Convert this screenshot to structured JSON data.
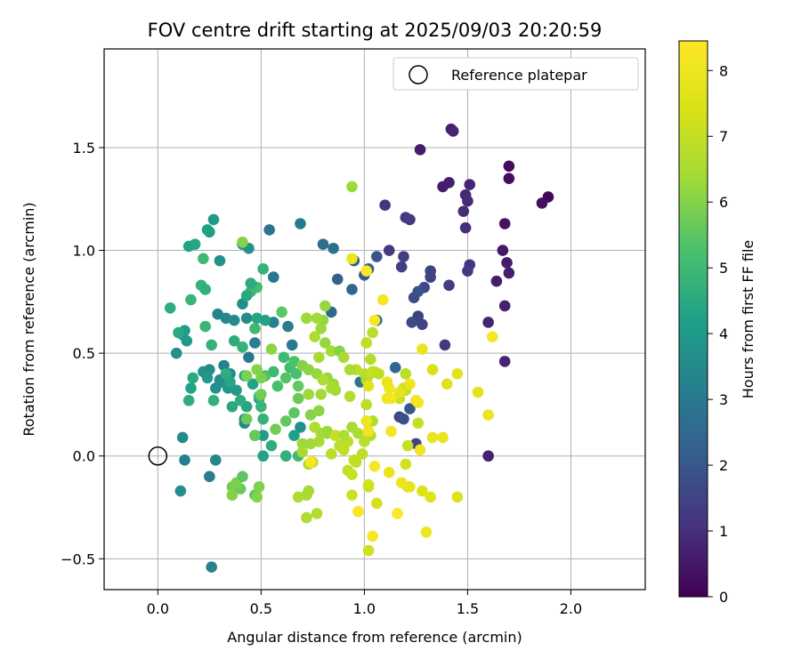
{
  "chart_data": {
    "type": "scatter",
    "title": "FOV centre drift starting at 2025/09/03 20:20:59",
    "xlabel": "Angular distance from reference (arcmin)",
    "ylabel": "Rotation from reference (arcmin)",
    "xlim": [
      -0.26,
      2.36
    ],
    "ylim": [
      -0.65,
      1.98
    ],
    "xticks": [
      0.0,
      0.5,
      1.0,
      1.5,
      2.0
    ],
    "xtick_labels": [
      "0.0",
      "0.5",
      "1.0",
      "1.5",
      "2.0"
    ],
    "yticks": [
      -0.5,
      0.0,
      0.5,
      1.0,
      1.5
    ],
    "ytick_labels": [
      "−0.5",
      "0.0",
      "0.5",
      "1.0",
      "1.5"
    ],
    "grid": true,
    "legend": {
      "label": "Reference platepar",
      "placement": "top-right"
    },
    "reference_point": {
      "x": 0.0,
      "y": 0.0
    },
    "colorbar": {
      "label": "Hours from first FF file",
      "range": [
        0,
        8.45
      ],
      "ticks": [
        0,
        1,
        2,
        3,
        4,
        5,
        6,
        7,
        8
      ],
      "tick_labels": [
        "0",
        "1",
        "2",
        "3",
        "4",
        "5",
        "6",
        "7",
        "8"
      ],
      "colormap": "viridis"
    },
    "points": [
      [
        1.27,
        1.49,
        0.55
      ],
      [
        1.42,
        1.59,
        0.65
      ],
      [
        1.43,
        1.58,
        0.75
      ],
      [
        1.41,
        1.33,
        0.7
      ],
      [
        1.38,
        1.31,
        0.6
      ],
      [
        1.51,
        1.32,
        0.8
      ],
      [
        1.49,
        1.27,
        0.85
      ],
      [
        1.5,
        1.24,
        0.9
      ],
      [
        1.48,
        1.19,
        0.95
      ],
      [
        1.49,
        1.11,
        1.0
      ],
      [
        1.7,
        1.41,
        0.2
      ],
      [
        1.7,
        1.35,
        0.25
      ],
      [
        1.89,
        1.26,
        0.15
      ],
      [
        1.86,
        1.23,
        0.3
      ],
      [
        1.68,
        1.13,
        0.35
      ],
      [
        1.1,
        1.22,
        1.1
      ],
      [
        1.2,
        1.16,
        1.2
      ],
      [
        1.22,
        1.15,
        1.3
      ],
      [
        1.12,
        1.0,
        1.25
      ],
      [
        1.19,
        0.97,
        1.35
      ],
      [
        1.18,
        0.92,
        1.4
      ],
      [
        1.32,
        0.9,
        1.5
      ],
      [
        1.32,
        0.87,
        1.45
      ],
      [
        1.29,
        0.82,
        1.6
      ],
      [
        1.24,
        0.77,
        1.7
      ],
      [
        1.26,
        0.8,
        1.8
      ],
      [
        1.51,
        0.93,
        1.1
      ],
      [
        1.5,
        0.9,
        1.2
      ],
      [
        1.41,
        0.83,
        1.3
      ],
      [
        1.67,
        1.0,
        0.5
      ],
      [
        1.69,
        0.94,
        0.55
      ],
      [
        1.7,
        0.89,
        0.6
      ],
      [
        1.64,
        0.85,
        0.65
      ],
      [
        1.68,
        0.73,
        0.7
      ],
      [
        1.6,
        0.65,
        0.75
      ],
      [
        1.68,
        0.46,
        0.8
      ],
      [
        1.6,
        0.0,
        0.7
      ],
      [
        1.26,
        0.68,
        1.4
      ],
      [
        1.28,
        0.64,
        1.5
      ],
      [
        1.23,
        0.65,
        1.6
      ],
      [
        1.39,
        0.54,
        1.2
      ],
      [
        1.06,
        0.97,
        1.9
      ],
      [
        1.0,
        0.88,
        2.0
      ],
      [
        0.95,
        0.95,
        2.1
      ],
      [
        1.02,
        0.91,
        2.2
      ],
      [
        0.87,
        0.86,
        2.3
      ],
      [
        0.94,
        0.81,
        2.4
      ],
      [
        0.84,
        0.7,
        2.5
      ],
      [
        0.8,
        1.03,
        2.6
      ],
      [
        0.85,
        1.01,
        2.7
      ],
      [
        1.06,
        0.66,
        2.5
      ],
      [
        0.98,
        0.36,
        2.8
      ],
      [
        1.17,
        0.19,
        1.6
      ],
      [
        1.19,
        0.18,
        1.8
      ],
      [
        1.22,
        0.23,
        2.0
      ],
      [
        1.25,
        0.06,
        1.5
      ],
      [
        1.15,
        0.43,
        2.4
      ],
      [
        0.54,
        1.1,
        2.8
      ],
      [
        0.69,
        1.13,
        3.0
      ],
      [
        0.56,
        0.87,
        2.9
      ],
      [
        0.63,
        0.63,
        3.1
      ],
      [
        0.65,
        0.54,
        3.0
      ],
      [
        0.56,
        0.65,
        3.2
      ],
      [
        0.44,
        0.48,
        3.0
      ],
      [
        0.47,
        0.55,
        3.1
      ],
      [
        0.29,
        0.69,
        3.3
      ],
      [
        0.33,
        0.67,
        3.4
      ],
      [
        0.37,
        0.66,
        3.5
      ],
      [
        0.41,
        0.74,
        3.6
      ],
      [
        0.43,
        0.67,
        3.55
      ],
      [
        0.41,
        1.03,
        3.9
      ],
      [
        0.44,
        1.01,
        3.8
      ],
      [
        0.3,
        0.95,
        3.7
      ],
      [
        0.27,
        1.15,
        4.0
      ],
      [
        0.25,
        1.09,
        4.1
      ],
      [
        0.24,
        1.1,
        4.2
      ],
      [
        0.15,
        1.02,
        4.3
      ],
      [
        0.18,
        1.03,
        4.4
      ],
      [
        0.12,
        0.59,
        4.2
      ],
      [
        0.14,
        0.56,
        4.0
      ],
      [
        0.13,
        0.61,
        4.1
      ],
      [
        0.1,
        0.6,
        4.5
      ],
      [
        0.06,
        0.72,
        4.6
      ],
      [
        0.09,
        0.5,
        3.7
      ],
      [
        0.16,
        0.33,
        4.3
      ],
      [
        0.17,
        0.38,
        4.5
      ],
      [
        0.15,
        0.27,
        4.6
      ],
      [
        0.22,
        0.41,
        3.8
      ],
      [
        0.25,
        0.42,
        3.6
      ],
      [
        0.24,
        0.38,
        3.9
      ],
      [
        0.3,
        0.37,
        3.5
      ],
      [
        0.28,
        0.33,
        3.8
      ],
      [
        0.32,
        0.44,
        3.3
      ],
      [
        0.35,
        0.4,
        3.5
      ],
      [
        0.31,
        0.36,
        3.7
      ],
      [
        0.34,
        0.33,
        3.9
      ],
      [
        0.38,
        0.32,
        4.0
      ],
      [
        0.42,
        0.39,
        4.2
      ],
      [
        0.46,
        0.35,
        4.3
      ],
      [
        0.49,
        0.28,
        3.6
      ],
      [
        0.43,
        0.24,
        4.4
      ],
      [
        0.36,
        0.24,
        4.5
      ],
      [
        0.4,
        0.27,
        4.6
      ],
      [
        0.27,
        0.27,
        4.7
      ],
      [
        0.26,
        0.54,
        4.8
      ],
      [
        0.23,
        0.63,
        4.9
      ],
      [
        0.21,
        0.83,
        4.8
      ],
      [
        0.23,
        0.81,
        4.7
      ],
      [
        0.16,
        0.76,
        4.9
      ],
      [
        0.22,
        0.96,
        5.0
      ],
      [
        0.37,
        0.56,
        4.6
      ],
      [
        0.41,
        0.53,
        4.8
      ],
      [
        0.47,
        0.62,
        5.0
      ],
      [
        0.45,
        0.8,
        4.9
      ],
      [
        0.48,
        0.82,
        5.1
      ],
      [
        0.45,
        0.84,
        4.6
      ],
      [
        0.51,
        0.91,
        4.8
      ],
      [
        0.48,
        0.67,
        4.4
      ],
      [
        0.52,
        0.66,
        4.3
      ],
      [
        0.42,
        0.16,
        3.4
      ],
      [
        0.42,
        0.18,
        3.5
      ],
      [
        0.47,
        0.1,
        4.0
      ],
      [
        0.51,
        0.1,
        4.1
      ],
      [
        0.51,
        0.0,
        4.3
      ],
      [
        0.55,
        0.05,
        4.6
      ],
      [
        0.51,
        0.18,
        4.8
      ],
      [
        0.5,
        0.24,
        4.9
      ],
      [
        0.49,
        0.29,
        5.0
      ],
      [
        0.58,
        0.34,
        5.2
      ],
      [
        0.56,
        0.41,
        5.0
      ],
      [
        0.52,
        0.39,
        5.3
      ],
      [
        0.61,
        0.48,
        5.0
      ],
      [
        0.64,
        0.43,
        5.1
      ],
      [
        0.67,
        0.4,
        5.2
      ],
      [
        0.66,
        0.46,
        5.3
      ],
      [
        0.62,
        0.38,
        5.4
      ],
      [
        0.6,
        0.7,
        5.5
      ],
      [
        0.68,
        0.34,
        5.6
      ],
      [
        0.68,
        0.28,
        5.7
      ],
      [
        0.66,
        0.21,
        5.5
      ],
      [
        0.69,
        0.14,
        3.7
      ],
      [
        0.66,
        0.1,
        4.2
      ],
      [
        0.62,
        0.0,
        4.7
      ],
      [
        0.68,
        0.0,
        5.0
      ],
      [
        0.62,
        0.17,
        5.6
      ],
      [
        0.57,
        0.13,
        5.8
      ],
      [
        0.5,
        0.38,
        5.9
      ],
      [
        0.48,
        0.42,
        6.0
      ],
      [
        0.43,
        0.39,
        5.9
      ],
      [
        0.43,
        0.18,
        5.7
      ],
      [
        0.47,
        0.1,
        5.6
      ],
      [
        0.5,
        0.3,
        5.8
      ],
      [
        0.47,
        -0.19,
        5.5
      ],
      [
        0.49,
        -0.15,
        5.9
      ],
      [
        0.48,
        -0.2,
        6.0
      ],
      [
        0.36,
        -0.15,
        5.8
      ],
      [
        0.36,
        -0.19,
        6.0
      ],
      [
        0.4,
        -0.16,
        5.7
      ],
      [
        0.38,
        -0.13,
        5.9
      ],
      [
        0.41,
        -0.1,
        5.5
      ],
      [
        0.41,
        1.04,
        6.0
      ],
      [
        0.94,
        1.31,
        6.3
      ],
      [
        0.55,
        0.52,
        6.1
      ],
      [
        0.7,
        0.44,
        6.0
      ],
      [
        0.73,
        0.42,
        6.1
      ],
      [
        0.77,
        0.4,
        6.2
      ],
      [
        0.73,
        0.3,
        6.3
      ],
      [
        0.79,
        0.3,
        6.4
      ],
      [
        0.74,
        0.2,
        6.0
      ],
      [
        0.78,
        0.22,
        6.1
      ],
      [
        0.82,
        0.38,
        6.2
      ],
      [
        0.85,
        0.35,
        6.3
      ],
      [
        0.86,
        0.32,
        6.4
      ],
      [
        0.84,
        0.33,
        6.5
      ],
      [
        0.8,
        0.37,
        6.6
      ],
      [
        0.78,
        0.48,
        6.5
      ],
      [
        0.81,
        0.55,
        6.2
      ],
      [
        0.84,
        0.51,
        6.4
      ],
      [
        0.88,
        0.51,
        6.0
      ],
      [
        0.9,
        0.48,
        6.5
      ],
      [
        0.8,
        0.66,
        6.2
      ],
      [
        0.79,
        0.62,
        6.3
      ],
      [
        0.77,
        0.67,
        6.4
      ],
      [
        0.72,
        0.67,
        6.5
      ],
      [
        0.76,
        0.58,
        6.6
      ],
      [
        0.81,
        0.73,
        6.2
      ],
      [
        0.82,
        0.11,
        6.2
      ],
      [
        0.82,
        0.12,
        6.3
      ],
      [
        0.79,
        0.11,
        6.4
      ],
      [
        0.78,
        0.07,
        6.5
      ],
      [
        0.74,
        0.06,
        6.4
      ],
      [
        0.76,
        0.14,
        6.6
      ],
      [
        0.7,
        0.06,
        6.3
      ],
      [
        0.7,
        0.02,
        6.5
      ],
      [
        0.73,
        -0.04,
        6.5
      ],
      [
        0.75,
        -0.03,
        6.7
      ],
      [
        0.73,
        -0.17,
        6.4
      ],
      [
        0.72,
        -0.19,
        6.5
      ],
      [
        0.68,
        -0.2,
        6.6
      ],
      [
        0.72,
        -0.3,
        6.6
      ],
      [
        0.77,
        -0.28,
        6.7
      ],
      [
        0.84,
        0.01,
        6.8
      ],
      [
        0.88,
        0.05,
        6.8
      ],
      [
        0.92,
        0.07,
        6.9
      ],
      [
        0.9,
        0.03,
        6.9
      ],
      [
        0.86,
        0.1,
        7.0
      ],
      [
        0.9,
        0.1,
        6.6
      ],
      [
        0.94,
        0.14,
        6.5
      ],
      [
        0.97,
        0.11,
        6.6
      ],
      [
        0.93,
        0.29,
        6.7
      ],
      [
        0.96,
        0.42,
        6.9
      ],
      [
        1.0,
        0.4,
        6.8
      ],
      [
        1.01,
        0.37,
        6.7
      ],
      [
        1.04,
        0.41,
        6.6
      ],
      [
        1.03,
        0.47,
        6.7
      ],
      [
        1.04,
        0.6,
        6.8
      ],
      [
        1.01,
        0.55,
        6.9
      ],
      [
        1.03,
        0.4,
        7.0
      ],
      [
        1.05,
        0.41,
        7.1
      ],
      [
        1.07,
        0.4,
        6.9
      ],
      [
        1.01,
        0.25,
        6.8
      ],
      [
        1.04,
        0.17,
        6.6
      ],
      [
        1.03,
        0.1,
        6.7
      ],
      [
        1.0,
        0.07,
        6.8
      ],
      [
        0.99,
        0.01,
        6.9
      ],
      [
        0.96,
        -0.03,
        6.8
      ],
      [
        0.95,
        -0.02,
        7.0
      ],
      [
        0.92,
        -0.07,
        7.0
      ],
      [
        0.94,
        -0.09,
        7.1
      ],
      [
        0.94,
        -0.19,
        7.2
      ],
      [
        1.06,
        -0.23,
        7.3
      ],
      [
        1.02,
        -0.14,
        7.4
      ],
      [
        1.02,
        -0.15,
        7.2
      ],
      [
        1.2,
        0.4,
        6.8
      ],
      [
        1.2,
        0.32,
        7.0
      ],
      [
        1.17,
        0.28,
        7.1
      ],
      [
        1.19,
        0.33,
        7.2
      ],
      [
        1.26,
        0.16,
        7.0
      ],
      [
        1.21,
        0.05,
        7.1
      ],
      [
        1.2,
        -0.04,
        7.3
      ],
      [
        1.21,
        -0.15,
        7.4
      ],
      [
        1.28,
        -0.17,
        7.5
      ],
      [
        1.32,
        -0.2,
        7.6
      ],
      [
        1.33,
        0.42,
        7.4
      ],
      [
        1.4,
        0.35,
        7.6
      ],
      [
        1.45,
        0.4,
        7.7
      ],
      [
        1.45,
        -0.2,
        7.5
      ],
      [
        1.28,
        0.52,
        7.9
      ],
      [
        1.22,
        0.35,
        8.0
      ],
      [
        1.25,
        0.27,
        8.1
      ],
      [
        1.26,
        0.26,
        8.2
      ],
      [
        1.12,
        0.33,
        8.0
      ],
      [
        1.11,
        0.28,
        8.1
      ],
      [
        1.13,
        0.28,
        8.2
      ],
      [
        1.09,
        0.76,
        8.2
      ],
      [
        1.05,
        0.66,
        8.3
      ],
      [
        1.01,
        0.9,
        8.4
      ],
      [
        1.17,
        0.31,
        7.8
      ],
      [
        1.11,
        0.36,
        7.9
      ],
      [
        1.02,
        0.34,
        7.7
      ],
      [
        1.01,
        0.17,
        8.0
      ],
      [
        1.02,
        0.12,
        8.1
      ],
      [
        1.13,
        0.12,
        8.2
      ],
      [
        1.05,
        -0.05,
        8.3
      ],
      [
        1.12,
        -0.08,
        7.9
      ],
      [
        1.18,
        -0.13,
        8.0
      ],
      [
        1.22,
        -0.15,
        7.9
      ],
      [
        1.04,
        -0.39,
        8.3
      ],
      [
        1.3,
        -0.37,
        8.0
      ],
      [
        1.27,
        0.03,
        8.1
      ],
      [
        1.33,
        0.09,
        7.8
      ],
      [
        1.38,
        0.09,
        7.9
      ],
      [
        1.55,
        0.31,
        7.7
      ],
      [
        1.6,
        0.2,
        8.0
      ],
      [
        1.62,
        0.58,
        8.2
      ],
      [
        0.94,
        0.96,
        8.0
      ],
      [
        0.97,
        -0.27,
        8.3
      ],
      [
        1.16,
        -0.28,
        8.4
      ],
      [
        0.74,
        -0.03,
        8.3
      ],
      [
        1.02,
        -0.46,
        7.2
      ],
      [
        0.93,
        0.42,
        6.5
      ],
      [
        0.72,
        0.67,
        6.3
      ],
      [
        0.35,
        0.36,
        4.4
      ],
      [
        0.43,
        0.78,
        4.5
      ],
      [
        0.33,
        0.4,
        4.6
      ]
    ],
    "colored_points_ext": [
      [
        0.12,
        0.09,
        3.6
      ],
      [
        0.13,
        -0.02,
        3.2
      ],
      [
        0.11,
        -0.17,
        3.7
      ],
      [
        0.25,
        -0.1,
        3.1
      ],
      [
        0.28,
        -0.02,
        3.4
      ],
      [
        0.26,
        -0.54,
        3.3
      ]
    ]
  }
}
